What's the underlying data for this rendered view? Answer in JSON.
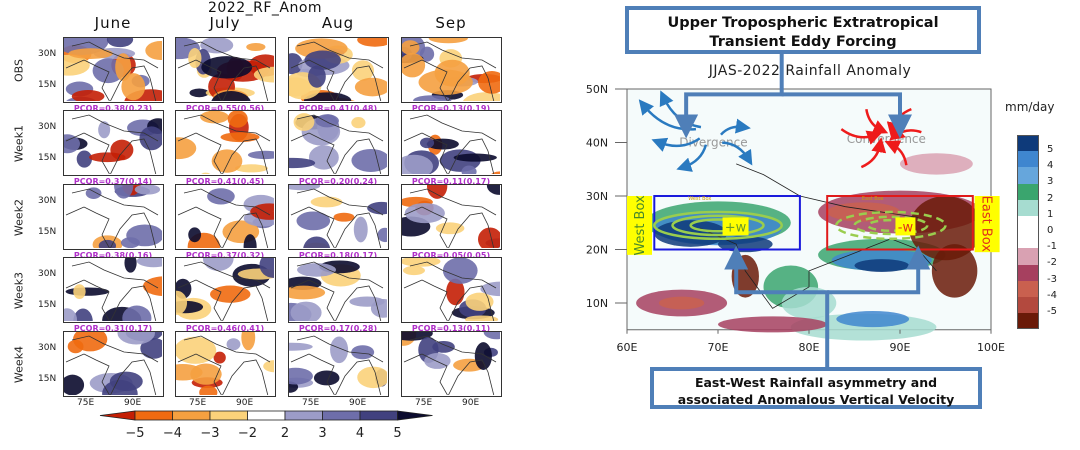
{
  "left_figure": {
    "title": "2022_RF_Anom",
    "columns": [
      "June",
      "July",
      "Aug",
      "Sep"
    ],
    "rows": [
      "OBS",
      "Week1",
      "Week2",
      "Week3",
      "Week4"
    ],
    "lat_ticks": [
      "30N",
      "15N"
    ],
    "lon_ticks": [
      "75E",
      "90E"
    ],
    "pcor": [
      [
        "PCOR=0.38(0.23)",
        "PCOR=0.55(0.56)",
        "PCOR=0.41(0.48)",
        "PCOR=0.13(0.19)"
      ],
      [
        "PCOR=0.37(0.14)",
        "PCOR=0.41(0.45)",
        "PCOR=0.20(0.24)",
        "PCOR=0.11(0.17)"
      ],
      [
        "PCOR=0.38(0.16)",
        "PCOR=0.37(0.32)",
        "PCOR=0.18(0.17)",
        "PCOR=0.05(0.05)"
      ],
      [
        "PCOR=0.31(0.17)",
        "PCOR=0.46(0.41)",
        "PCOR=0.17(0.28)",
        "PCOR=0.13(0.11)"
      ]
    ],
    "colorbar": {
      "labels": [
        "−5",
        "−4",
        "−3",
        "−2",
        "2",
        "3",
        "4",
        "5"
      ],
      "colors": [
        "#c41f05",
        "#f06a10",
        "#f5a040",
        "#fbd27a",
        "#ffffff",
        "#9c9cc8",
        "#6e6eaa",
        "#41417f",
        "#0b0b2e"
      ]
    }
  },
  "right_figure": {
    "top_callout_lines": [
      "Upper Tropospheric Extratropical",
      "Transient Eddy Forcing"
    ],
    "map_title": "JJAS-2022 Rainfall Anomaly",
    "lat_ticks": [
      "50N",
      "40N",
      "30N",
      "20N",
      "10N"
    ],
    "lon_ticks": [
      "60E",
      "70E",
      "80E",
      "90E",
      "100E"
    ],
    "divergence_label": "Divergence",
    "convergence_label": "Convergence",
    "west_box_label": "West Box",
    "east_box_label": "East Box",
    "west_box_inner": "West Box",
    "east_box_inner": "East Box",
    "plus_w": "+w",
    "minus_w": "-w",
    "units": "mm/day",
    "colorbar": {
      "labels": [
        "5",
        "4",
        "3",
        "2",
        "1",
        "0",
        "-1",
        "-2",
        "-3",
        "-4",
        "-5"
      ],
      "colors": [
        "#0e3a7a",
        "#3f86cf",
        "#66a6dc",
        "#3aa56e",
        "#a6dcd0",
        "#ffffff",
        "#ffffff",
        "#d9a1b2",
        "#a6405f",
        "#c9604f",
        "#b3493e",
        "#6a1a08"
      ]
    },
    "bottom_callout_lines": [
      "East-West Rainfall asymmetry and",
      "associated Anomalous Vertical Velocity"
    ],
    "colors": {
      "callout_border": "#4f7fb8",
      "divergence_arrows": "#2a7ac0",
      "convergence_arrows": "#ee1b1b",
      "west_box": "#1a1adc",
      "east_box": "#e01a1a",
      "highlight": "#ffff00",
      "contours": "#9acd4e"
    }
  }
}
